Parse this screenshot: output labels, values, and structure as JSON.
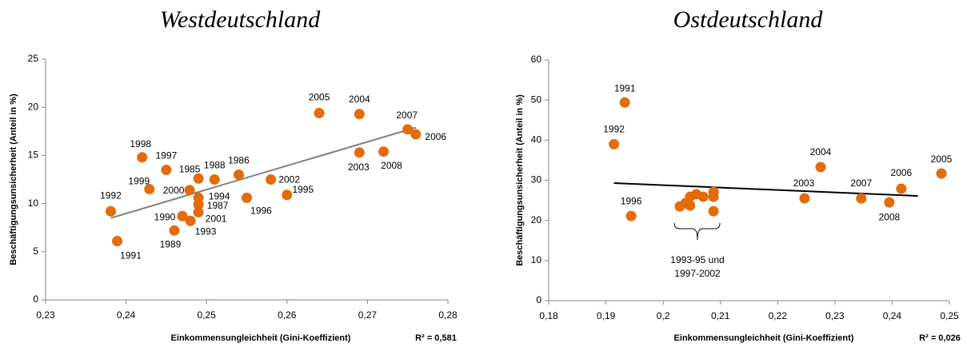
{
  "chart_data": [
    {
      "type": "scatter",
      "title": "Westdeutschland",
      "x_label": "Einkommensungleichheit (Gini-Koeffizient)",
      "y_label": "Beschäftigungsunsicherheit (Anteil in %)",
      "r_squared_label": "R² = 0,581",
      "color": "#e36c0a",
      "trend_color": "#7f7f7f",
      "xlim": [
        0.23,
        0.28
      ],
      "xticks": [
        {
          "value": 0.23,
          "label": "0,23"
        },
        {
          "value": 0.24,
          "label": "0,24"
        },
        {
          "value": 0.25,
          "label": "0,25"
        },
        {
          "value": 0.26,
          "label": "0,26"
        },
        {
          "value": 0.27,
          "label": "0,27"
        },
        {
          "value": 0.28,
          "label": "0,28"
        }
      ],
      "ylim": [
        0,
        25
      ],
      "yticks": [
        0,
        5,
        10,
        15,
        20,
        25
      ],
      "x": [
        0.2381,
        0.2389,
        0.242,
        0.245,
        0.2429,
        0.249,
        0.251,
        0.254,
        0.2479,
        0.249,
        0.249,
        0.249,
        0.247,
        0.248,
        0.246,
        0.255,
        0.26,
        0.258,
        0.264,
        0.269,
        0.269,
        0.272,
        0.275,
        0.276
      ],
      "y": [
        9.2,
        6.1,
        14.8,
        13.5,
        11.5,
        12.6,
        12.5,
        13.0,
        11.4,
        10.6,
        9.9,
        9.1,
        8.7,
        8.2,
        7.2,
        10.6,
        10.9,
        12.5,
        19.4,
        19.3,
        15.3,
        15.4,
        17.7,
        17.2
      ],
      "point_labels": [
        "1992",
        "1991",
        "1998",
        "1997",
        "1999",
        "1985",
        "1988",
        "1986",
        "2000",
        "1994",
        "1987",
        "2001",
        "1990",
        "1993",
        "1989",
        "1996",
        "1995",
        "2002",
        "2005",
        "2004",
        "2003",
        "2008",
        "2007",
        "2006"
      ],
      "trendline": {
        "x": [
          0.2381,
          0.276
        ],
        "y": [
          8.5,
          17.9
        ]
      }
    },
    {
      "type": "scatter",
      "title": "Ostdeutschland",
      "x_label": "Einkommensungleichheit (Gini-Koeffizient)",
      "y_label": "Beschäftigungsunsicherheit (Anteil in %)",
      "r_squared_label": "R² = 0,026",
      "color": "#e36c0a",
      "trend_color": "#000000",
      "xlim": [
        0.18,
        0.25
      ],
      "xticks": [
        {
          "value": 0.18,
          "label": "0,18"
        },
        {
          "value": 0.19,
          "label": "0,19"
        },
        {
          "value": 0.2,
          "label": "0,2"
        },
        {
          "value": 0.21,
          "label": "0,21"
        },
        {
          "value": 0.22,
          "label": "0,22"
        },
        {
          "value": 0.23,
          "label": "0,23"
        },
        {
          "value": 0.24,
          "label": "0,24"
        },
        {
          "value": 0.25,
          "label": "0,25"
        }
      ],
      "ylim": [
        0,
        60
      ],
      "yticks": [
        0,
        10,
        20,
        30,
        40,
        50,
        60
      ],
      "x": [
        0.1933,
        0.1914,
        0.1944,
        0.2029,
        0.2039,
        0.2047,
        0.2047,
        0.2058,
        0.207,
        0.2088,
        0.2088,
        0.2088,
        0.2247,
        0.2275,
        0.2346,
        0.2395,
        0.2416,
        0.2486
      ],
      "y": [
        49.4,
        39.0,
        21.1,
        23.5,
        24.3,
        25.9,
        23.7,
        26.5,
        25.9,
        27.1,
        25.9,
        22.3,
        25.5,
        33.3,
        25.5,
        24.5,
        27.9,
        31.7
      ],
      "point_labels": [
        "1991",
        "1992",
        "1996",
        null,
        null,
        null,
        null,
        null,
        null,
        null,
        null,
        null,
        "2003",
        "2004",
        "2007",
        "2008",
        "2006",
        "2005"
      ],
      "annotation": [
        "1993-95 und",
        "1997-2002"
      ],
      "trendline": {
        "x": [
          0.1914,
          0.2445
        ],
        "y": [
          29.3,
          26.1
        ]
      }
    }
  ]
}
